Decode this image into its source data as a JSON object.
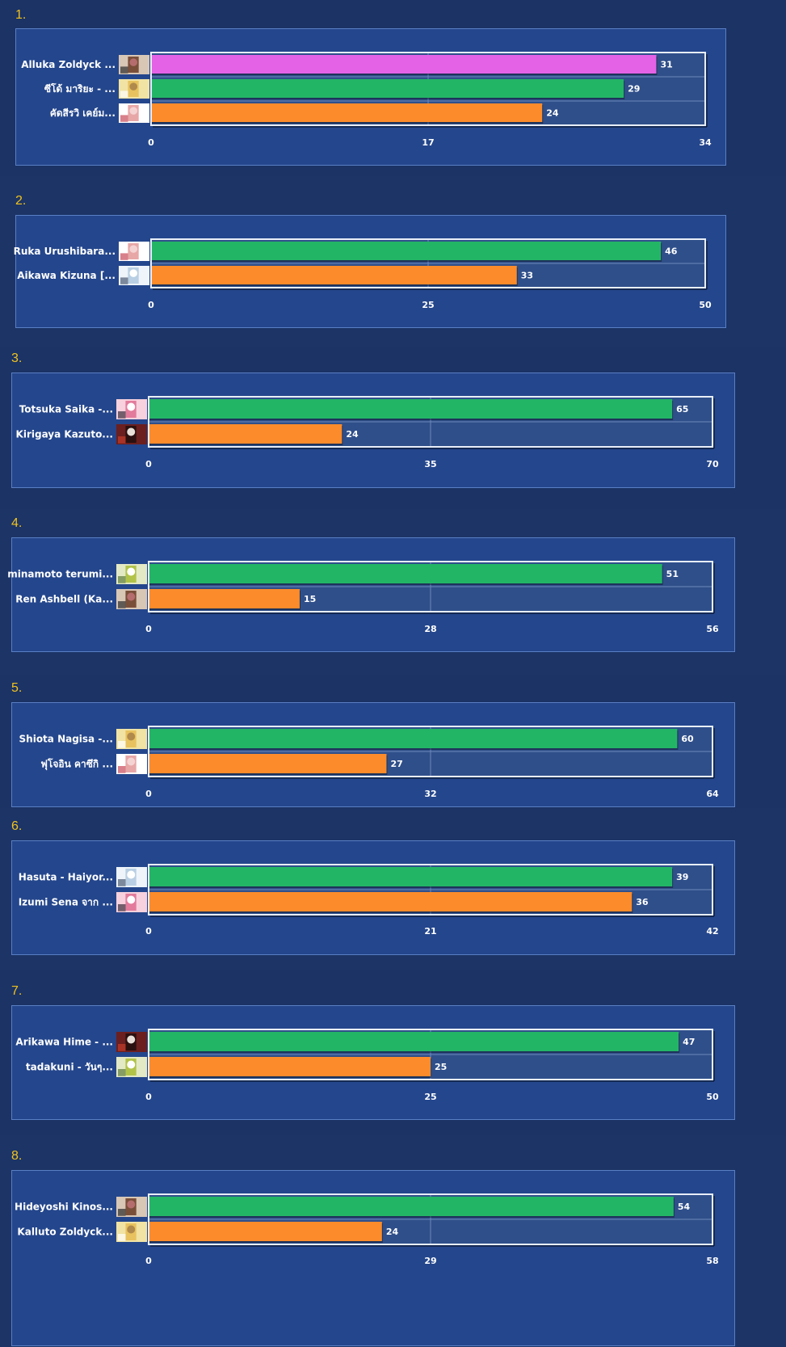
{
  "colors": {
    "page_bg": "#1b3365",
    "panel_bg": "#24468c",
    "plot_bg": "#2f4f8a",
    "rank_color": "#f2c21c",
    "first_place": "#e462e6",
    "green": "#23b566",
    "orange": "#fb8b2b",
    "text": "#ffffff"
  },
  "chart_data": [
    {
      "type": "bar",
      "orientation": "horizontal",
      "rank": "1.",
      "categories": [
        "Alluka Zoldyck ...",
        "ซีโด้ มาริยะ - ...",
        "คัดสีรวิ เคย์ม..."
      ],
      "values": [
        31,
        29,
        24
      ],
      "xlim": [
        0,
        34
      ],
      "ticks": [
        "0",
        "17",
        "34"
      ],
      "bar_colors": [
        "first_place",
        "green",
        "orange"
      ],
      "avatar_icons": [
        "avatar-icon",
        "avatar-icon",
        "avatar-icon"
      ]
    },
    {
      "type": "bar",
      "orientation": "horizontal",
      "rank": "2.",
      "categories": [
        "Ruka Urushibara...",
        "Aikawa Kizuna [..."
      ],
      "values": [
        46,
        33
      ],
      "xlim": [
        0,
        50
      ],
      "ticks": [
        "0",
        "25",
        "50"
      ],
      "bar_colors": [
        "green",
        "orange"
      ],
      "avatar_icons": [
        "avatar-icon",
        "avatar-icon"
      ]
    },
    {
      "type": "bar",
      "orientation": "horizontal",
      "rank": "3.",
      "categories": [
        "Totsuka Saika -...",
        "Kirigaya Kazuto..."
      ],
      "values": [
        65,
        24
      ],
      "xlim": [
        0,
        70
      ],
      "ticks": [
        "0",
        "35",
        "70"
      ],
      "bar_colors": [
        "green",
        "orange"
      ],
      "avatar_icons": [
        "avatar-icon",
        "avatar-icon"
      ]
    },
    {
      "type": "bar",
      "orientation": "horizontal",
      "rank": "4.",
      "categories": [
        "minamoto terumi...",
        "Ren Ashbell (Ka..."
      ],
      "values": [
        51,
        15
      ],
      "xlim": [
        0,
        56
      ],
      "ticks": [
        "0",
        "28",
        "56"
      ],
      "bar_colors": [
        "green",
        "orange"
      ],
      "avatar_icons": [
        "avatar-icon",
        "avatar-icon"
      ]
    },
    {
      "type": "bar",
      "orientation": "horizontal",
      "rank": "5.",
      "categories": [
        "Shiota Nagisa -...",
        "ฟุโจอิน คาซึกิ ..."
      ],
      "values": [
        60,
        27
      ],
      "xlim": [
        0,
        64
      ],
      "ticks": [
        "0",
        "32",
        "64"
      ],
      "bar_colors": [
        "green",
        "orange"
      ],
      "avatar_icons": [
        "avatar-icon",
        "avatar-icon"
      ]
    },
    {
      "type": "bar",
      "orientation": "horizontal",
      "rank": "6.",
      "categories": [
        "Hasuta - Haiyor...",
        "Izumi Sena จาก ..."
      ],
      "values": [
        39,
        36
      ],
      "xlim": [
        0,
        42
      ],
      "ticks": [
        "0",
        "21",
        "42"
      ],
      "bar_colors": [
        "green",
        "orange"
      ],
      "avatar_icons": [
        "avatar-icon",
        "avatar-icon"
      ]
    },
    {
      "type": "bar",
      "orientation": "horizontal",
      "rank": "7.",
      "categories": [
        "Arikawa Hime - ...",
        "tadakuni - วันๆ..."
      ],
      "values": [
        47,
        25
      ],
      "xlim": [
        0,
        50
      ],
      "ticks": [
        "0",
        "25",
        "50"
      ],
      "bar_colors": [
        "green",
        "orange"
      ],
      "avatar_icons": [
        "avatar-icon",
        "avatar-icon"
      ]
    },
    {
      "type": "bar",
      "orientation": "horizontal",
      "rank": "8.",
      "categories": [
        "Hideyoshi Kinos...",
        "Kalluto Zoldyck..."
      ],
      "values": [
        54,
        24
      ],
      "xlim": [
        0,
        58
      ],
      "ticks": [
        "0",
        "29",
        "58"
      ],
      "bar_colors": [
        "green",
        "orange"
      ],
      "avatar_icons": [
        "avatar-icon",
        "avatar-icon"
      ]
    }
  ]
}
